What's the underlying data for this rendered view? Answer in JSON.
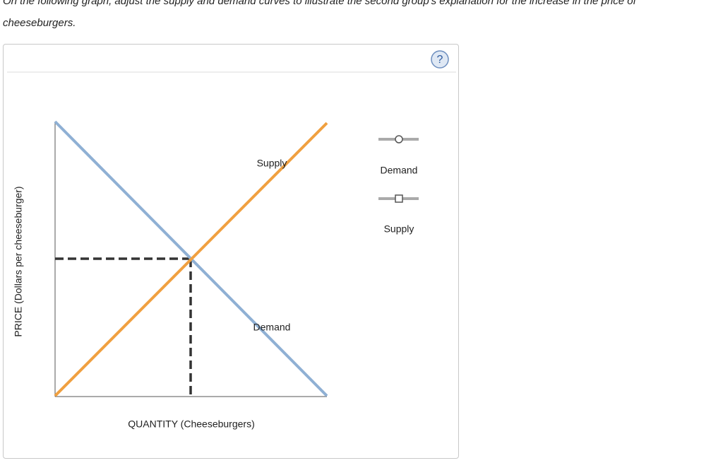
{
  "instruction": {
    "lines": [
      "On the following graph, adjust the supply and demand curves to illustrate the second group's explanation for the increase in the price of",
      "cheeseburgers."
    ]
  },
  "graph": {
    "y_axis_label": "PRICE (Dollars per cheeseburger)",
    "x_axis_label": "QUANTITY (Cheeseburgers)",
    "curve_labels": {
      "supply": "Supply",
      "demand": "Demand"
    },
    "help_icon": "?"
  },
  "legend": {
    "items": [
      "Demand",
      "Supply"
    ]
  }
}
